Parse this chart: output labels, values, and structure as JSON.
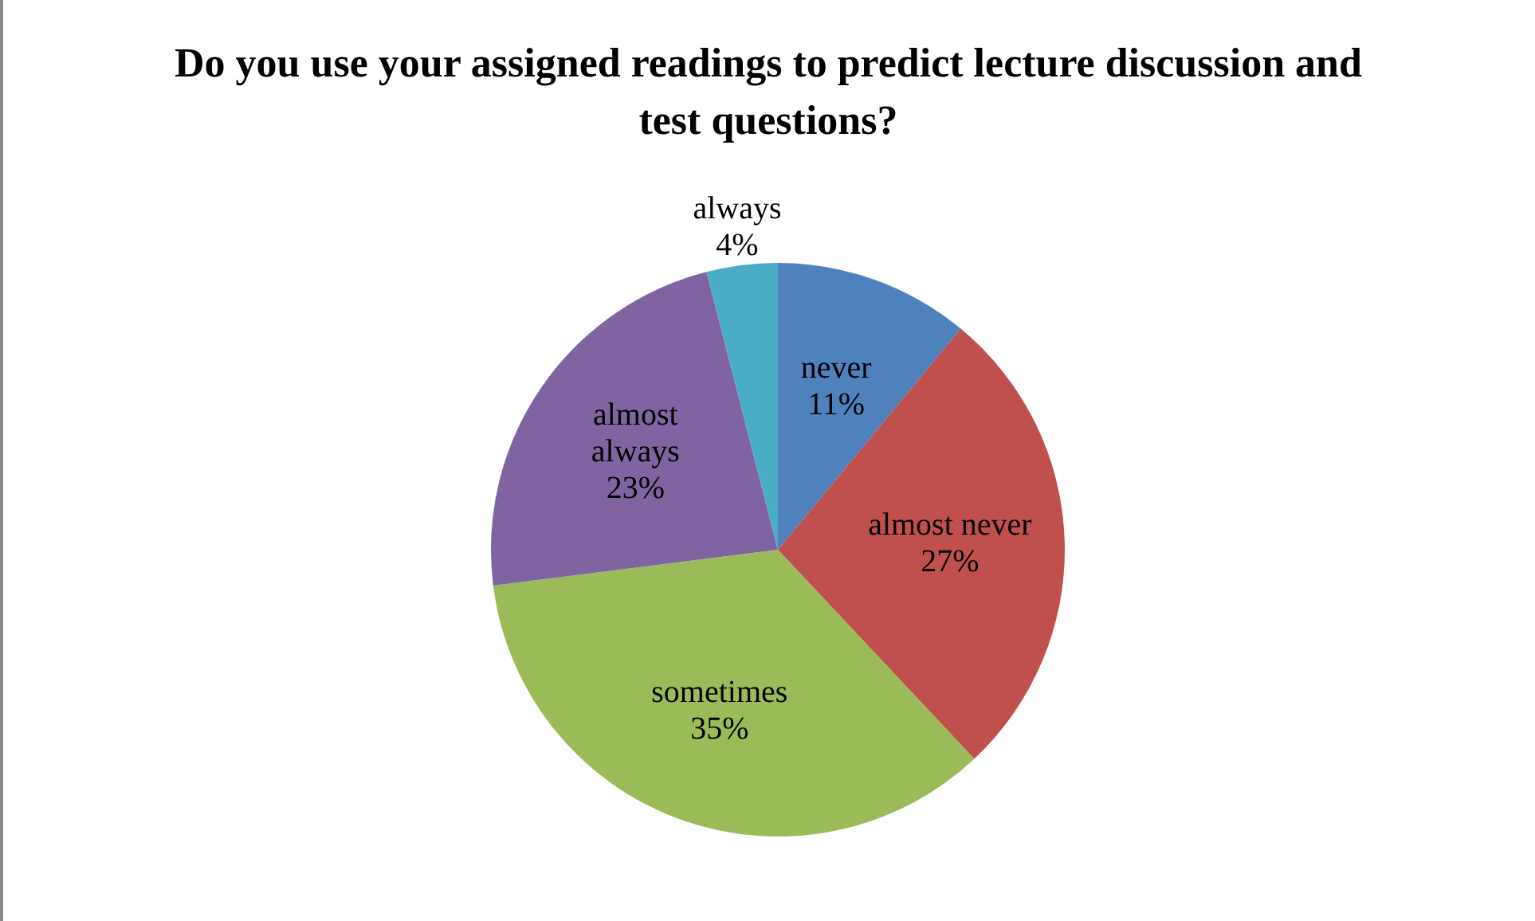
{
  "chart_data": {
    "type": "pie",
    "title": "Do you use your assigned readings to predict lecture discussion and test questions?",
    "categories": [
      "never",
      "almost never",
      "sometimes",
      "almost always",
      "always"
    ],
    "values": [
      11,
      27,
      35,
      23,
      4
    ],
    "value_labels": [
      "11%",
      "27%",
      "35%",
      "23%",
      "4%"
    ],
    "colors": [
      "#4f81bd",
      "#c0504d",
      "#9bbb59",
      "#8064a2",
      "#4bacc6"
    ],
    "legend": false
  }
}
